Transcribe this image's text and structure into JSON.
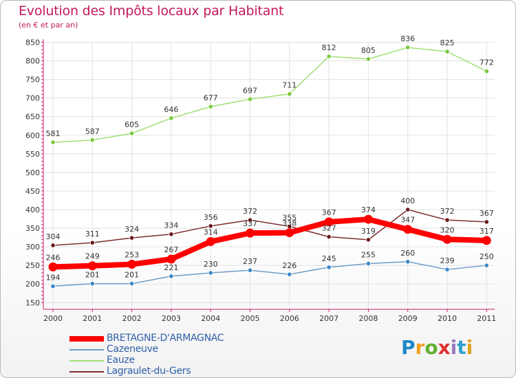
{
  "header": {
    "title": "Evolution des Impôts locaux par Habitant",
    "subtitle": "(en € et par an)"
  },
  "colors": {
    "title": "#c2185b",
    "legend_text": "#2e5fa8",
    "axis": "#cc1c6c",
    "grid": "#e1e1e1"
  },
  "chart_data": {
    "type": "line",
    "title": "Evolution des Impôts locaux par Habitant",
    "subtitle": "(en € et par an)",
    "xlabel": "",
    "ylabel": "",
    "categories": [
      "2000",
      "2001",
      "2002",
      "2003",
      "2004",
      "2005",
      "2006",
      "2007",
      "2008",
      "2009",
      "2010",
      "2011"
    ],
    "yticks": [
      150,
      200,
      250,
      300,
      350,
      400,
      450,
      500,
      550,
      600,
      650,
      700,
      750,
      800,
      850
    ],
    "ylim": [
      150,
      850
    ],
    "grid": true,
    "series": [
      {
        "name": "BRETAGNE-D'ARMAGNAC",
        "color": "#ff0000",
        "point_color": "#ff0000",
        "values": [
          246,
          249,
          253,
          267,
          314,
          337,
          338,
          367,
          374,
          347,
          320,
          317
        ]
      },
      {
        "name": "Cazeneuve",
        "color": "#6f9dc6",
        "point_color": "#3a87c8",
        "values": [
          194,
          201,
          201,
          221,
          230,
          237,
          226,
          245,
          255,
          260,
          239,
          250
        ]
      },
      {
        "name": "Eauze",
        "color": "#9ee074",
        "point_color": "#79c93c",
        "values": [
          581,
          587,
          605,
          646,
          677,
          697,
          711,
          812,
          805,
          836,
          825,
          772
        ]
      },
      {
        "name": "Lagraulet-du-Gers",
        "color": "#7d2c2c",
        "point_color": "#6b1a1a",
        "values": [
          304,
          311,
          324,
          334,
          356,
          372,
          355,
          327,
          319,
          400,
          372,
          367
        ]
      }
    ]
  },
  "legend": {
    "items": [
      {
        "label": "BRETAGNE-D'ARMAGNAC",
        "color": "#ff0000"
      },
      {
        "label": "Cazeneuve",
        "color": "#6f9dc6"
      },
      {
        "label": "Eauze",
        "color": "#9ee074"
      },
      {
        "label": "Lagraulet-du-Gers",
        "color": "#7d2c2c"
      }
    ]
  },
  "logo": {
    "letters": [
      "P",
      "r",
      "o",
      "x",
      "i",
      "t",
      "i"
    ],
    "colors": [
      "#1e88c8",
      "#f0a020",
      "#60b030",
      "#e03030",
      "#9a7ac0",
      "#30a0d0",
      "#e0a020"
    ],
    "alt": "Proxiti"
  }
}
